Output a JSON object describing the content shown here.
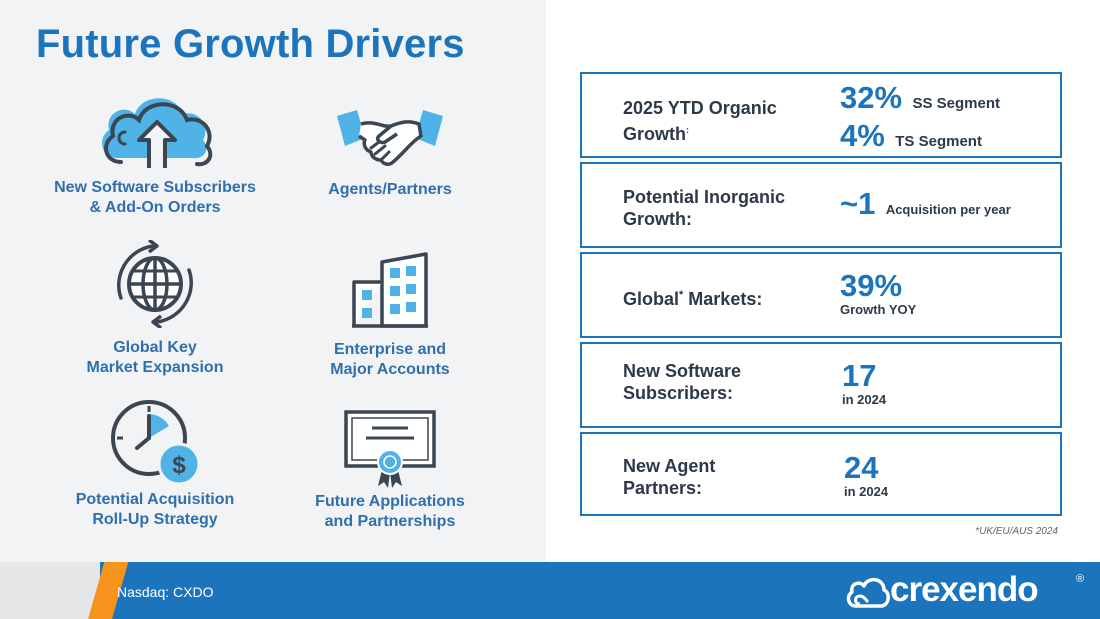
{
  "title": "Future Growth Drivers",
  "drivers": [
    {
      "line1": "New Software Subscribers",
      "line2": "& Add-On Orders",
      "icon": "cloud-upload-icon"
    },
    {
      "line1": "Agents/Partners",
      "line2": "",
      "icon": "handshake-icon"
    },
    {
      "line1": "Global Key",
      "line2": "Market Expansion",
      "icon": "globe-icon"
    },
    {
      "line1": "Enterprise and",
      "line2": "Major Accounts",
      "icon": "building-icon"
    },
    {
      "line1": "Potential Acquisition",
      "line2": "Roll-Up Strategy",
      "icon": "clock-dollar-icon"
    },
    {
      "line1": "Future Applications",
      "line2": "and Partnerships",
      "icon": "certificate-icon"
    }
  ],
  "metrics": {
    "organic": {
      "line1": "2025 YTD Organic",
      "line2": "Growth",
      "mark": ":",
      "ss_value": "32%",
      "ss_label": "SS Segment",
      "ts_value": "4%",
      "ts_label": "TS Segment"
    },
    "inorganic": {
      "line1": "Potential Inorganic",
      "line2": "Growth:",
      "value": "~1",
      "label": "Acquisition per year"
    },
    "global": {
      "text": "Global",
      "mark": "*",
      "suffix": " Markets:",
      "value": "39%",
      "label": "Growth YOY"
    },
    "subscribers": {
      "line1": "New Software",
      "line2": "Subscribers:",
      "value": "17",
      "label": "in 2024"
    },
    "agents": {
      "line1": "New Agent",
      "line2": "Partners:",
      "value": "24",
      "label": "in 2024"
    }
  },
  "footnote": "*UK/EU/AUS 2024",
  "footer": {
    "ticker": "Nasdaq: CXDO",
    "logo_text": "crexendo",
    "logo_mark": "®"
  },
  "colors": {
    "brand_blue": "#1c75bc",
    "accent_orange": "#f7941d",
    "icon_light_blue": "#4fb3e8",
    "icon_dark": "#3a4652"
  }
}
